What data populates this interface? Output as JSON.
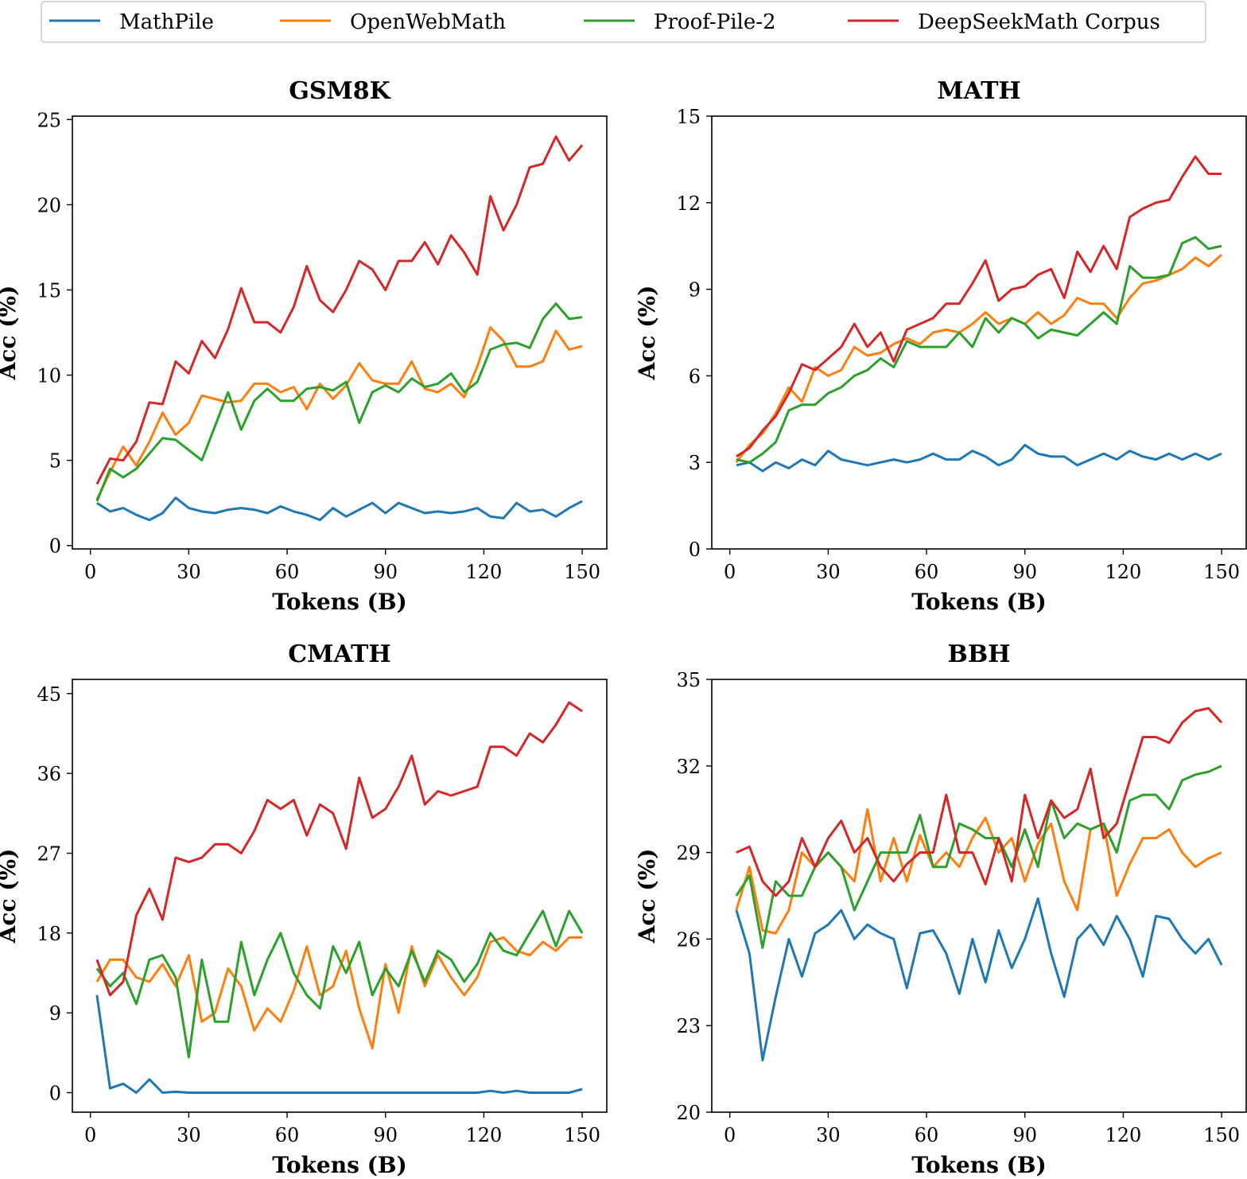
{
  "legend": {
    "placement": "top-center",
    "entries": [
      {
        "name": "MathPile",
        "color": "#1f77b4"
      },
      {
        "name": "OpenWebMath",
        "color": "#ff7f0e"
      },
      {
        "name": "Proof-Pile-2",
        "color": "#2ca02c"
      },
      {
        "name": "DeepSeekMath Corpus",
        "color": "#d62728"
      }
    ]
  },
  "chart_data": [
    {
      "type": "line",
      "title": "GSM8K",
      "xlabel": "Tokens (B)",
      "ylabel": "Acc (%)",
      "xlim": [
        -5.5,
        157.5
      ],
      "ylim": [
        -0.2,
        25.2
      ],
      "xticks": [
        0,
        30,
        60,
        90,
        120,
        150
      ],
      "yticks": [
        0,
        5,
        10,
        15,
        20,
        25
      ],
      "grid": false,
      "x": [
        2,
        6,
        10,
        14,
        18,
        22,
        26,
        30,
        34,
        38,
        42,
        46,
        50,
        54,
        58,
        62,
        66,
        70,
        74,
        78,
        82,
        86,
        90,
        94,
        98,
        102,
        106,
        110,
        114,
        118,
        122,
        126,
        130,
        134,
        138,
        142,
        146,
        150
      ],
      "series": [
        {
          "name": "MathPile",
          "values": [
            2.5,
            2.0,
            2.2,
            1.8,
            1.5,
            1.9,
            2.8,
            2.2,
            2.0,
            1.9,
            2.1,
            2.2,
            2.1,
            1.9,
            2.3,
            2.0,
            1.8,
            1.5,
            2.2,
            1.7,
            2.1,
            2.5,
            1.9,
            2.5,
            2.2,
            1.9,
            2.0,
            1.9,
            2.0,
            2.2,
            1.7,
            1.6,
            2.5,
            2.0,
            2.1,
            1.7,
            2.2,
            2.6
          ]
        },
        {
          "name": "OpenWebMath",
          "values": [
            2.7,
            4.3,
            5.8,
            4.7,
            6.1,
            7.8,
            6.5,
            7.2,
            8.8,
            8.6,
            8.4,
            8.5,
            9.5,
            9.5,
            9.0,
            9.3,
            8.0,
            9.5,
            8.6,
            9.4,
            10.7,
            9.7,
            9.5,
            9.5,
            10.8,
            9.2,
            9.0,
            9.5,
            8.7,
            10.5,
            12.8,
            12.0,
            10.5,
            10.5,
            10.8,
            12.6,
            11.5,
            11.7
          ]
        },
        {
          "name": "Proof-Pile-2",
          "values": [
            2.6,
            4.5,
            4.0,
            4.5,
            5.4,
            6.3,
            6.2,
            5.6,
            5.0,
            7.0,
            9.0,
            6.8,
            8.5,
            9.2,
            8.5,
            8.5,
            9.2,
            9.3,
            9.1,
            9.6,
            7.2,
            9.0,
            9.4,
            9.0,
            9.8,
            9.3,
            9.5,
            10.1,
            9.0,
            9.6,
            11.5,
            11.8,
            11.9,
            11.6,
            13.3,
            14.2,
            13.3,
            13.4
          ]
        },
        {
          "name": "DeepSeekMath Corpus",
          "values": [
            3.6,
            5.1,
            5.0,
            6.1,
            8.4,
            8.3,
            10.8,
            10.1,
            12.0,
            11.0,
            12.7,
            15.1,
            13.1,
            13.1,
            12.5,
            14.0,
            16.4,
            14.4,
            13.7,
            15.0,
            16.7,
            16.2,
            15.0,
            16.7,
            16.7,
            17.8,
            16.5,
            18.2,
            17.2,
            15.9,
            20.5,
            18.5,
            20.0,
            22.2,
            22.4,
            24.0,
            22.6,
            23.5
          ]
        }
      ]
    },
    {
      "type": "line",
      "title": "MATH",
      "xlabel": "Tokens (B)",
      "ylabel": "Acc (%)",
      "xlim": [
        -5.5,
        157.5
      ],
      "ylim": [
        0,
        15
      ],
      "xticks": [
        0,
        30,
        60,
        90,
        120,
        150
      ],
      "yticks": [
        0,
        3,
        6,
        9,
        12,
        15
      ],
      "grid": false,
      "x": [
        2,
        6,
        10,
        14,
        18,
        22,
        26,
        30,
        34,
        38,
        42,
        46,
        50,
        54,
        58,
        62,
        66,
        70,
        74,
        78,
        82,
        86,
        90,
        94,
        98,
        102,
        106,
        110,
        114,
        118,
        122,
        126,
        130,
        134,
        138,
        142,
        146,
        150
      ],
      "series": [
        {
          "name": "MathPile",
          "values": [
            2.9,
            3.0,
            2.7,
            3.0,
            2.8,
            3.1,
            2.9,
            3.4,
            3.1,
            3.0,
            2.9,
            3.0,
            3.1,
            3.0,
            3.1,
            3.3,
            3.1,
            3.1,
            3.4,
            3.2,
            2.9,
            3.1,
            3.6,
            3.3,
            3.2,
            3.2,
            2.9,
            3.1,
            3.3,
            3.1,
            3.4,
            3.2,
            3.1,
            3.3,
            3.1,
            3.3,
            3.1,
            3.3
          ]
        },
        {
          "name": "OpenWebMath",
          "values": [
            3.0,
            3.6,
            4.0,
            4.7,
            5.6,
            5.1,
            6.3,
            6.0,
            6.2,
            7.0,
            6.7,
            6.8,
            7.1,
            7.3,
            7.1,
            7.5,
            7.6,
            7.5,
            7.8,
            8.2,
            7.8,
            8.0,
            7.8,
            8.2,
            7.8,
            8.1,
            8.7,
            8.5,
            8.5,
            8.0,
            8.7,
            9.2,
            9.3,
            9.5,
            9.7,
            10.1,
            9.8,
            10.2
          ]
        },
        {
          "name": "Proof-Pile-2",
          "values": [
            3.1,
            3.0,
            3.3,
            3.7,
            4.8,
            5.0,
            5.0,
            5.4,
            5.6,
            6.0,
            6.2,
            6.6,
            6.3,
            7.2,
            7.0,
            7.0,
            7.0,
            7.5,
            7.0,
            8.0,
            7.5,
            8.0,
            7.8,
            7.3,
            7.6,
            7.5,
            7.4,
            7.8,
            8.2,
            7.8,
            9.8,
            9.4,
            9.4,
            9.5,
            10.6,
            10.8,
            10.4,
            10.5
          ]
        },
        {
          "name": "DeepSeekMath Corpus",
          "values": [
            3.2,
            3.5,
            4.1,
            4.6,
            5.4,
            6.4,
            6.2,
            6.6,
            7.0,
            7.8,
            7.0,
            7.5,
            6.5,
            7.6,
            7.8,
            8.0,
            8.5,
            8.5,
            9.2,
            10.0,
            8.6,
            9.0,
            9.1,
            9.5,
            9.7,
            8.7,
            10.3,
            9.6,
            10.5,
            9.7,
            11.5,
            11.8,
            12.0,
            12.1,
            12.9,
            13.6,
            13.0,
            13.0
          ]
        }
      ]
    },
    {
      "type": "line",
      "title": "CMATH",
      "xlabel": "Tokens (B)",
      "ylabel": "Acc (%)",
      "xlim": [
        -5.5,
        157.5
      ],
      "ylim": [
        -2.2,
        46.6
      ],
      "xticks": [
        0,
        30,
        60,
        90,
        120,
        150
      ],
      "yticks": [
        0,
        9,
        18,
        27,
        36,
        45
      ],
      "grid": false,
      "x": [
        2,
        6,
        10,
        14,
        18,
        22,
        26,
        30,
        34,
        38,
        42,
        46,
        50,
        54,
        58,
        62,
        66,
        70,
        74,
        78,
        82,
        86,
        90,
        94,
        98,
        102,
        106,
        110,
        114,
        118,
        122,
        126,
        130,
        134,
        138,
        142,
        146,
        150
      ],
      "series": [
        {
          "name": "MathPile",
          "values": [
            11.0,
            0.5,
            1.0,
            0,
            1.5,
            0,
            0.1,
            0,
            0,
            0,
            0,
            0,
            0,
            0,
            0,
            0,
            0,
            0,
            0,
            0,
            0,
            0,
            0,
            0,
            0,
            0,
            0,
            0,
            0,
            0,
            0.2,
            0,
            0.2,
            0,
            0,
            0,
            0,
            0.4
          ]
        },
        {
          "name": "OpenWebMath",
          "values": [
            12.5,
            15.0,
            15.0,
            13.0,
            12.5,
            14.5,
            12.0,
            15.5,
            8.0,
            9.0,
            14.0,
            12.0,
            7.0,
            9.5,
            8.0,
            11.5,
            16.5,
            11.0,
            12.0,
            16.0,
            9.5,
            5.0,
            14.5,
            9.0,
            16.5,
            12.0,
            15.5,
            13.0,
            11.0,
            13.0,
            17.0,
            17.5,
            16.0,
            15.5,
            17.0,
            16.0,
            17.5,
            17.5
          ]
        },
        {
          "name": "Proof-Pile-2",
          "values": [
            14.0,
            12.0,
            13.5,
            10.0,
            15.0,
            15.5,
            13.0,
            4.0,
            15.0,
            8.0,
            8.0,
            17.0,
            11.0,
            15.0,
            18.0,
            13.5,
            11.0,
            9.5,
            16.5,
            13.5,
            17.0,
            11.0,
            14.0,
            12.0,
            16.0,
            12.5,
            16.0,
            15.0,
            12.5,
            14.5,
            18.0,
            16.0,
            15.5,
            18.0,
            20.5,
            16.5,
            20.5,
            18.0
          ]
        },
        {
          "name": "DeepSeekMath Corpus",
          "values": [
            15.0,
            11.0,
            12.5,
            20.0,
            23.0,
            19.5,
            26.5,
            26.0,
            26.5,
            28.0,
            28.0,
            27.0,
            29.5,
            33.0,
            32.0,
            33.0,
            29.0,
            32.5,
            31.5,
            27.5,
            35.5,
            31.0,
            32.0,
            34.5,
            38.0,
            32.5,
            34.0,
            33.5,
            34.0,
            34.5,
            39.0,
            39.0,
            38.0,
            40.5,
            39.5,
            41.5,
            44.0,
            43.0
          ]
        }
      ]
    },
    {
      "type": "line",
      "title": "BBH",
      "xlabel": "Tokens (B)",
      "ylabel": "Acc (%)",
      "xlim": [
        -5.5,
        157.5
      ],
      "ylim": [
        20,
        35
      ],
      "xticks": [
        0,
        30,
        60,
        90,
        120,
        150
      ],
      "yticks": [
        20,
        23,
        26,
        29,
        32,
        35
      ],
      "grid": false,
      "x": [
        2,
        6,
        10,
        14,
        18,
        22,
        26,
        30,
        34,
        38,
        42,
        46,
        50,
        54,
        58,
        62,
        66,
        70,
        74,
        78,
        82,
        86,
        90,
        94,
        98,
        102,
        106,
        110,
        114,
        118,
        122,
        126,
        130,
        134,
        138,
        142,
        146,
        150
      ],
      "series": [
        {
          "name": "MathPile",
          "values": [
            27.0,
            25.5,
            21.8,
            24.0,
            26.0,
            24.7,
            26.2,
            26.5,
            27.0,
            26.0,
            26.5,
            26.2,
            26.0,
            24.3,
            26.2,
            26.3,
            25.5,
            24.1,
            26.0,
            24.5,
            26.3,
            25.0,
            26.0,
            27.4,
            25.5,
            24.0,
            26.0,
            26.5,
            25.8,
            26.8,
            26.0,
            24.7,
            26.8,
            26.7,
            26.0,
            25.5,
            26.0,
            25.1
          ]
        },
        {
          "name": "OpenWebMath",
          "values": [
            27.0,
            28.5,
            26.3,
            26.2,
            27.0,
            29.0,
            28.5,
            29.0,
            28.5,
            28.0,
            30.5,
            28.0,
            29.5,
            28.0,
            29.6,
            28.5,
            29.0,
            28.5,
            29.5,
            30.2,
            29.0,
            29.5,
            28.0,
            29.3,
            30.0,
            28.0,
            27.0,
            29.8,
            30.0,
            27.5,
            28.6,
            29.5,
            29.5,
            29.8,
            29.0,
            28.5,
            28.8,
            29.0
          ]
        },
        {
          "name": "Proof-Pile-2",
          "values": [
            27.5,
            28.2,
            25.7,
            28.0,
            27.5,
            27.5,
            28.5,
            29.0,
            28.5,
            27.0,
            28.0,
            29.0,
            29.0,
            29.0,
            30.3,
            28.5,
            28.5,
            30.0,
            29.8,
            29.5,
            29.5,
            28.5,
            29.8,
            28.5,
            30.8,
            29.5,
            30.0,
            29.8,
            30.0,
            29.0,
            30.8,
            31.0,
            31.0,
            30.5,
            31.5,
            31.7,
            31.8,
            32.0
          ]
        },
        {
          "name": "DeepSeekMath Corpus",
          "values": [
            29.0,
            29.2,
            28.0,
            27.5,
            28.0,
            29.5,
            28.5,
            29.5,
            30.1,
            29.0,
            29.5,
            28.5,
            28.0,
            28.6,
            29.0,
            29.0,
            31.0,
            29.0,
            29.0,
            27.9,
            29.5,
            28.0,
            31.0,
            29.5,
            30.8,
            30.2,
            30.5,
            31.9,
            29.5,
            30.0,
            31.5,
            33.0,
            33.0,
            32.8,
            33.5,
            33.9,
            34.0,
            33.5
          ]
        }
      ]
    }
  ]
}
